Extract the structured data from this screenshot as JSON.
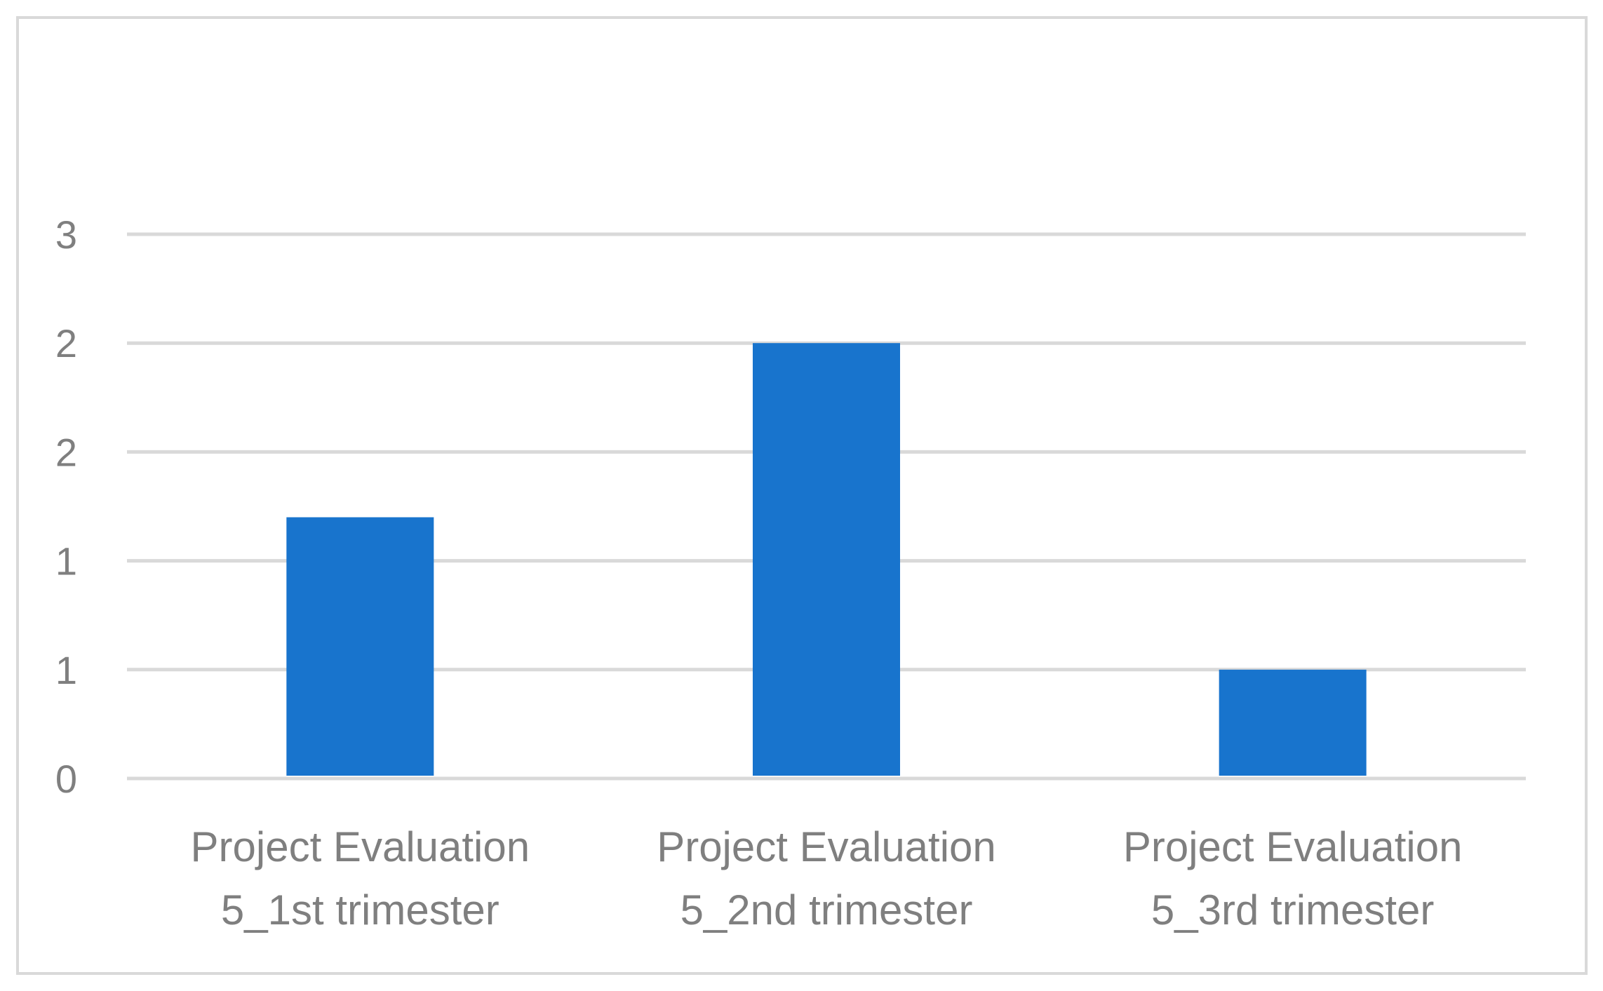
{
  "chart_data": {
    "type": "bar",
    "title": "",
    "xlabel": "",
    "ylabel": "",
    "categories": [
      [
        "Project Evaluation",
        "5_1st trimester"
      ],
      [
        "Project Evaluation",
        "5_2nd trimester"
      ],
      [
        "Project Evaluation",
        "5_3rd trimester"
      ]
    ],
    "values": [
      1.2,
      2.0,
      0.5
    ],
    "ylim": [
      0,
      2.5
    ],
    "ytick_values": [
      0,
      0.5,
      1.0,
      1.5,
      2.0,
      2.5
    ],
    "ytick_labels": [
      "0",
      "1",
      "1",
      "2",
      "2",
      "3"
    ],
    "grid": true,
    "legend": "none",
    "bar_color": "#1874cd",
    "grid_color": "#d9d9d9",
    "text_color": "#7f7f7f"
  }
}
